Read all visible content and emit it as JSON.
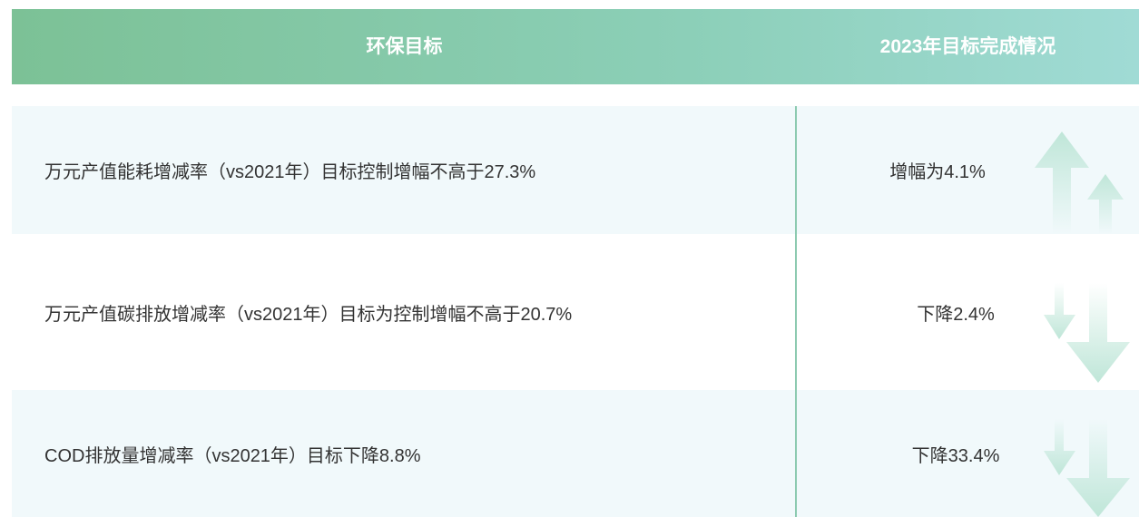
{
  "header": {
    "columns": [
      "环保目标",
      "2023年目标完成情况"
    ]
  },
  "table": {
    "rows": [
      [
        "万元产值能耗增减率（vs2021年）目标控制增幅不高于27.3%",
        "增幅为4.1%"
      ],
      [
        "万元产值碳排放增减率（vs2021年）目标为控制增幅不高于20.7%",
        "下降2.4%"
      ],
      [
        "COD排放量增减率（vs2021年）目标下降8.8%",
        "下降33.4%"
      ]
    ]
  }
}
